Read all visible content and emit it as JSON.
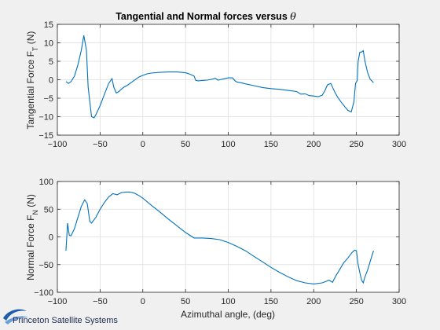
{
  "figure": {
    "logo_text": "Princeton Satellite Systems",
    "accent_color": "#0072bd",
    "logo_color": "#1b5eab"
  },
  "chart_data": [
    {
      "type": "line",
      "title": "Tangential and Normal forces versus",
      "title_symbol": "θ",
      "xlabel": "",
      "ylabel": "Tangential Force F",
      "ylabel_sub": "T",
      "ylabel_close": ")",
      "ylabel_open": " (N",
      "xlim": [
        -100,
        300
      ],
      "ylim": [
        -15,
        15
      ],
      "xticks": [
        -100,
        -50,
        0,
        50,
        100,
        150,
        200,
        250,
        300
      ],
      "yticks": [
        -15,
        -10,
        -5,
        0,
        5,
        10,
        15
      ],
      "grid": true,
      "series": [
        {
          "name": "F_T",
          "x": [
            -90,
            -87,
            -84,
            -80,
            -76,
            -72,
            -69,
            -66,
            -64,
            -60,
            -57,
            -55,
            -50,
            -45,
            -40,
            -36,
            -34,
            -31,
            -28,
            -25,
            -22,
            -18,
            -12,
            -8,
            -4,
            0,
            5,
            10,
            20,
            30,
            40,
            50,
            55,
            60,
            62,
            65,
            70,
            75,
            80,
            85,
            88,
            92,
            96,
            100,
            105,
            108,
            110,
            115,
            120,
            130,
            140,
            150,
            160,
            170,
            180,
            185,
            190,
            195,
            200,
            205,
            210,
            213,
            216,
            220,
            223,
            225,
            228,
            232,
            236,
            240,
            244,
            247,
            249,
            251,
            252,
            254,
            256,
            258,
            260,
            263,
            266,
            270
          ],
          "values": [
            -0.5,
            -1.0,
            -0.5,
            1.0,
            4.0,
            8.0,
            12.0,
            8.0,
            -2.0,
            -10.0,
            -10.3,
            -9.5,
            -7.0,
            -4.0,
            -1.0,
            0.3,
            -2.0,
            -3.6,
            -3.2,
            -2.5,
            -2.0,
            -1.5,
            -0.5,
            0.2,
            0.8,
            1.2,
            1.6,
            1.8,
            2.0,
            2.1,
            2.1,
            1.9,
            1.5,
            1.0,
            -0.2,
            -0.3,
            -0.2,
            -0.1,
            0.1,
            0.4,
            -0.1,
            0.1,
            0.3,
            0.5,
            0.5,
            -0.3,
            -0.6,
            -0.8,
            -1.1,
            -1.6,
            -2.1,
            -2.4,
            -2.6,
            -2.9,
            -3.2,
            -3.9,
            -3.8,
            -4.3,
            -4.4,
            -4.6,
            -4.2,
            -3.0,
            -1.4,
            -1.0,
            -2.5,
            -3.5,
            -4.7,
            -6.0,
            -7.2,
            -8.3,
            -8.7,
            -6.0,
            -1.0,
            -0.2,
            5.0,
            7.5,
            7.5,
            7.9,
            5.0,
            2.0,
            0.2,
            -0.8
          ]
        }
      ]
    },
    {
      "type": "line",
      "title": "",
      "xlabel": "Azimuthal angle,  (deg)",
      "ylabel": "Normal Force F",
      "ylabel_sub": "N",
      "ylabel_close": ")",
      "ylabel_open": " (N",
      "xlim": [
        -100,
        300
      ],
      "ylim": [
        -100,
        100
      ],
      "xticks": [
        -100,
        -50,
        0,
        50,
        100,
        150,
        200,
        250,
        300
      ],
      "yticks": [
        -100,
        -50,
        0,
        50,
        100
      ],
      "grid": true,
      "series": [
        {
          "name": "F_N",
          "x": [
            -90,
            -89,
            -88,
            -86,
            -84,
            -80,
            -76,
            -72,
            -68,
            -65,
            -62,
            -60,
            -55,
            -50,
            -45,
            -40,
            -35,
            -30,
            -25,
            -20,
            -15,
            -10,
            -5,
            0,
            10,
            20,
            30,
            40,
            50,
            60,
            70,
            80,
            90,
            100,
            110,
            120,
            130,
            140,
            150,
            160,
            170,
            180,
            190,
            200,
            210,
            215,
            218,
            222,
            226,
            230,
            235,
            240,
            245,
            248,
            250,
            252,
            254,
            256,
            258,
            260,
            263,
            266,
            270
          ],
          "values": [
            -25,
            0,
            25,
            3,
            2,
            15,
            35,
            55,
            67,
            60,
            28,
            25,
            35,
            50,
            62,
            72,
            78,
            76,
            80,
            81,
            81,
            79,
            75,
            70,
            57,
            45,
            32,
            20,
            8,
            -2,
            -2,
            -3,
            -5,
            -10,
            -17,
            -25,
            -35,
            -45,
            -55,
            -64,
            -72,
            -79,
            -83,
            -85,
            -83,
            -80,
            -78,
            -82,
            -70,
            -60,
            -47,
            -38,
            -28,
            -24,
            -25,
            -50,
            -65,
            -78,
            -83,
            -72,
            -60,
            -45,
            -25
          ]
        }
      ]
    }
  ]
}
